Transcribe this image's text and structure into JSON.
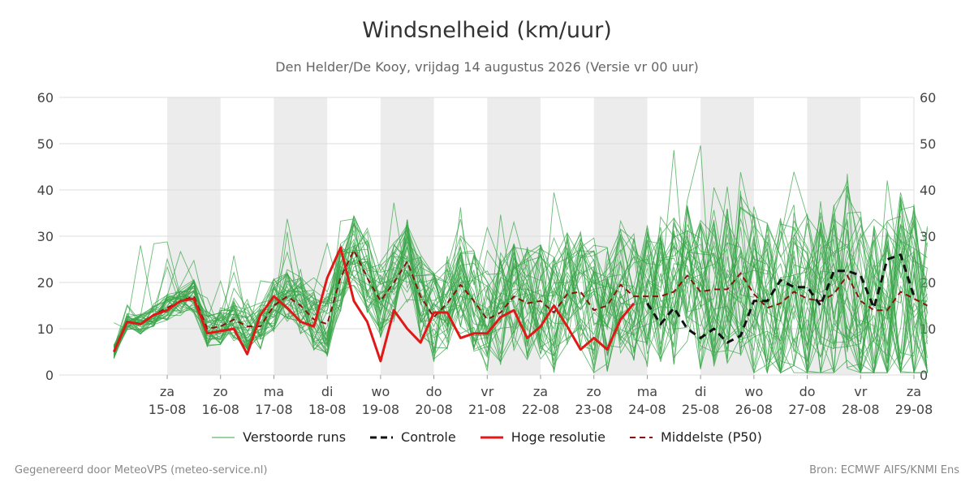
{
  "title": "Windsnelheid (km/uur)",
  "subtitle": "Den Helder/De Kooy, vrijdag 14 augustus 2026 (Versie vr 00 uur)",
  "footer": {
    "left": "Gegenereerd door MeteoVPS (meteo-service.nl)",
    "right": "Bron: ECMWF AIFS/KNMI Ens"
  },
  "colors": {
    "ensemble": "#3aa64a",
    "control": "#111111",
    "hires": "#e01818",
    "median": "#8b1010",
    "weekend_band": "#ececec",
    "grid": "#dddddd"
  },
  "legend": [
    {
      "key": "ensemble",
      "label": "Verstoorde runs",
      "style": "thin"
    },
    {
      "key": "control",
      "label": "Controle",
      "style": "dashed"
    },
    {
      "key": "hires",
      "label": "Hoge resolutie",
      "style": "solid"
    },
    {
      "key": "median",
      "label": "Middelste (P50)",
      "style": "dashed"
    }
  ],
  "chart_data": {
    "type": "line",
    "title": "Windsnelheid (km/uur)",
    "ylim": [
      0,
      60
    ],
    "yticks": [
      0,
      10,
      20,
      30,
      40,
      50,
      60
    ],
    "xlim": [
      0,
      15
    ],
    "grid": true,
    "legend_position": "bottom",
    "x_ticks": [
      {
        "x": 1,
        "day": "za",
        "date": "15-08"
      },
      {
        "x": 2,
        "day": "zo",
        "date": "16-08"
      },
      {
        "x": 3,
        "day": "ma",
        "date": "17-08"
      },
      {
        "x": 4,
        "day": "di",
        "date": "18-08"
      },
      {
        "x": 5,
        "day": "wo",
        "date": "19-08"
      },
      {
        "x": 6,
        "day": "do",
        "date": "20-08"
      },
      {
        "x": 7,
        "day": "vr",
        "date": "21-08"
      },
      {
        "x": 8,
        "day": "za",
        "date": "22-08"
      },
      {
        "x": 9,
        "day": "zo",
        "date": "23-08"
      },
      {
        "x": 10,
        "day": "ma",
        "date": "24-08"
      },
      {
        "x": 11,
        "day": "di",
        "date": "25-08"
      },
      {
        "x": 12,
        "day": "wo",
        "date": "26-08"
      },
      {
        "x": 13,
        "day": "do",
        "date": "27-08"
      },
      {
        "x": 14,
        "day": "vr",
        "date": "28-08"
      },
      {
        "x": 15,
        "day": "za",
        "date": "29-08"
      }
    ],
    "shaded_days": [
      [
        1,
        2
      ],
      [
        3,
        4
      ],
      [
        5,
        6
      ],
      [
        7,
        8
      ],
      [
        9,
        10
      ],
      [
        11,
        12
      ],
      [
        13,
        14
      ]
    ],
    "series": [
      {
        "name": "Hoge resolutie",
        "role": "hires",
        "step": 0.25,
        "values": [
          5,
          11.5,
          11,
          13,
          14,
          16,
          16.5,
          9,
          9.5,
          10,
          4.5,
          13,
          17,
          14.5,
          11.5,
          10.5,
          21,
          27.5,
          16,
          11.5,
          3,
          14,
          10,
          7,
          13.5,
          13.5,
          8,
          9,
          9,
          12.5,
          14,
          8,
          10.5,
          15,
          10.5,
          5.5,
          8,
          5.5,
          12,
          15.5
        ]
      },
      {
        "name": "Controle",
        "role": "control",
        "step": 0.25,
        "x_start": 10,
        "values": [
          15.5,
          11,
          14.5,
          10,
          8,
          10,
          7,
          8.5,
          16,
          16,
          20.5,
          19,
          19,
          15,
          22.5,
          22.5,
          21.5,
          14.5,
          25,
          26,
          17
        ]
      },
      {
        "name": "Middelste (P50)",
        "role": "median",
        "step": 0.25,
        "values": [
          5,
          11.5,
          11,
          13,
          14.5,
          16,
          17,
          10,
          10.5,
          12,
          10.5,
          10.5,
          15,
          17,
          15,
          12,
          11,
          21,
          27,
          21,
          16,
          20,
          24.5,
          17,
          12.5,
          15.5,
          19.5,
          16,
          12,
          13.5,
          17,
          15.5,
          16,
          13.5,
          17.5,
          18,
          14,
          15,
          19.5,
          17,
          17,
          17,
          18,
          21.5,
          18,
          18.5,
          18.5,
          22,
          17.5,
          14.5,
          15.5,
          18,
          16.5,
          16,
          17.5,
          21.5,
          16,
          14,
          14,
          18,
          16.5,
          15
        ]
      }
    ],
    "ensemble_members": 40
  }
}
